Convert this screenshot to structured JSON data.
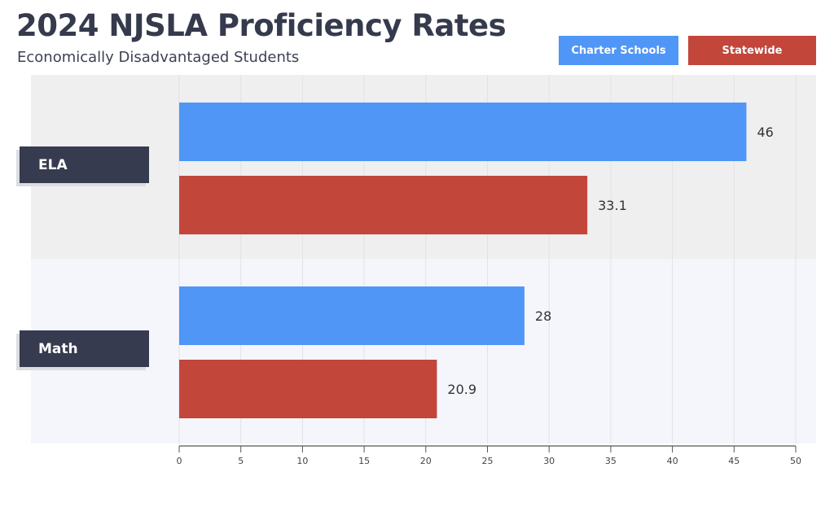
{
  "chart_data": {
    "type": "bar",
    "orientation": "horizontal",
    "title": "2024 NJSLA Proficiency Rates",
    "subtitle": "Economically Disadvantaged Students",
    "categories": [
      "ELA",
      "Math"
    ],
    "series": [
      {
        "name": "Charter Schools",
        "color": "#4f96f7",
        "values": [
          46,
          28
        ],
        "labels": [
          "46",
          "28"
        ]
      },
      {
        "name": "Statewide",
        "color": "#c2463a",
        "values": [
          33.1,
          20.9
        ],
        "labels": [
          "33.1",
          "20.9"
        ]
      }
    ],
    "xlim": [
      0,
      50
    ],
    "xticks": [
      "0",
      "5",
      "10",
      "15",
      "20",
      "25",
      "30",
      "35",
      "40",
      "45",
      "50"
    ],
    "grid": true,
    "legend": "top-right"
  }
}
